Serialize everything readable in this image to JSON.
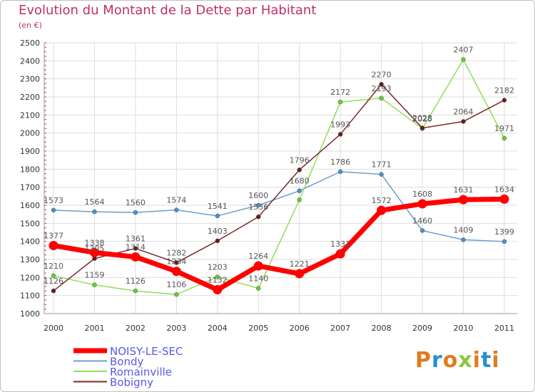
{
  "header": {
    "title": "Evolution du Montant de la Dette par Habitant",
    "unit": "(en €)"
  },
  "logo": {
    "text": "Proxiti",
    "colors": [
      "#e07b1f",
      "#2a8fd1",
      "#e07b1f",
      "#8cc63f",
      "#e07b1f",
      "#2a8fd1",
      "#e07b1f"
    ]
  },
  "chart_data": {
    "type": "line",
    "categories": [
      "2000",
      "2001",
      "2002",
      "2003",
      "2004",
      "2005",
      "2006",
      "2007",
      "2008",
      "2009",
      "2010",
      "2011"
    ],
    "ylim": [
      1000,
      2500
    ],
    "yticks": [
      1000,
      1100,
      1200,
      1300,
      1400,
      1500,
      1600,
      1700,
      1800,
      1900,
      2000,
      2100,
      2200,
      2300,
      2400,
      2500
    ],
    "grid": true,
    "legend": "bottom-left",
    "series": [
      {
        "name": "NOISY-LE-SEC",
        "color": "#ff0000",
        "marker": "#ff0000",
        "width": 7,
        "values": [
          1377,
          1338,
          1314,
          1234,
          1132,
          1264,
          1221,
          1331,
          1572,
          1608,
          1631,
          1634
        ]
      },
      {
        "name": "Bondy",
        "color": "#6c9fd0",
        "marker": "#4a8fd0",
        "width": 1.5,
        "values": [
          1573,
          1564,
          1560,
          1574,
          1541,
          1600,
          1680,
          1786,
          1771,
          1460,
          1409,
          1399
        ]
      },
      {
        "name": "Romainville",
        "color": "#8ee05a",
        "marker": "#66cc33",
        "width": 1.5,
        "values": [
          1210,
          1159,
          1126,
          1106,
          1203,
          1140,
          1630,
          2172,
          2193,
          2025,
          2407,
          1971
        ],
        "labels": [
          "1210",
          "1159",
          "1126",
          "1106",
          "1203",
          "1140",
          "",
          "2172",
          "2193",
          "2025",
          "2407",
          "1971"
        ]
      },
      {
        "name": "Bobigny",
        "color": "#7a2a2a",
        "marker": "#6b1b1b",
        "width": 1.5,
        "values": [
          1126,
          1305,
          1361,
          1282,
          1403,
          1536,
          1796,
          1993,
          2270,
          2028,
          2064,
          2182
        ]
      }
    ]
  }
}
